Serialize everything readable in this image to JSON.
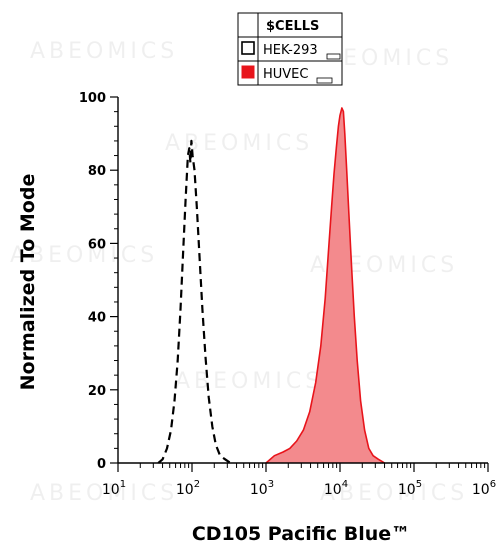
{
  "watermark": "ABEOMICS",
  "legend": {
    "header": "$CELLS",
    "entries": [
      {
        "label": "HEK-293",
        "swatch": "#ffffff",
        "swatch_border": "#000000"
      },
      {
        "label": "HUVEC",
        "swatch": "#e8141b",
        "swatch_border": "#e8141b"
      }
    ]
  },
  "chart_data": {
    "type": "area",
    "xlabel": "CD105 Pacific Blue™",
    "ylabel": "Normalized To Mode",
    "x_scale": "log",
    "xlim": [
      10,
      1000000
    ],
    "ylim": [
      0,
      100
    ],
    "x_ticks": [
      {
        "base": "10",
        "exp": "1",
        "value": 10
      },
      {
        "base": "10",
        "exp": "2",
        "value": 100
      },
      {
        "base": "10",
        "exp": "3",
        "value": 1000
      },
      {
        "base": "10",
        "exp": "4",
        "value": 10000
      },
      {
        "base": "10",
        "exp": "5",
        "value": 100000
      },
      {
        "base": "10",
        "exp": "6",
        "value": 1000000
      }
    ],
    "y_ticks": [
      "0",
      "20",
      "40",
      "60",
      "80",
      "100"
    ],
    "series": [
      {
        "name": "HEK-293",
        "color": "#000000",
        "fill": "none",
        "style": "dashed",
        "points": [
          [
            35,
            0
          ],
          [
            40,
            1
          ],
          [
            46,
            4
          ],
          [
            52,
            9
          ],
          [
            58,
            17
          ],
          [
            64,
            28
          ],
          [
            70,
            42
          ],
          [
            76,
            58
          ],
          [
            82,
            72
          ],
          [
            88,
            84
          ],
          [
            92,
            86
          ],
          [
            95,
            82
          ],
          [
            98,
            88
          ],
          [
            102,
            84
          ],
          [
            108,
            80
          ],
          [
            116,
            70
          ],
          [
            126,
            57
          ],
          [
            138,
            42
          ],
          [
            152,
            29
          ],
          [
            168,
            18
          ],
          [
            188,
            10
          ],
          [
            210,
            5
          ],
          [
            240,
            2
          ],
          [
            280,
            1
          ],
          [
            330,
            0
          ]
        ]
      },
      {
        "name": "HUVEC",
        "color": "#e8141b",
        "fill": "#f38a8d",
        "style": "solid",
        "points": [
          [
            1000,
            0
          ],
          [
            1300,
            2
          ],
          [
            1700,
            3
          ],
          [
            2100,
            4
          ],
          [
            2600,
            6
          ],
          [
            3200,
            9
          ],
          [
            3900,
            14
          ],
          [
            4700,
            22
          ],
          [
            5500,
            32
          ],
          [
            6300,
            45
          ],
          [
            7000,
            58
          ],
          [
            7700,
            70
          ],
          [
            8300,
            79
          ],
          [
            8900,
            86
          ],
          [
            9500,
            92
          ],
          [
            10000,
            95
          ],
          [
            10600,
            97
          ],
          [
            11100,
            96
          ],
          [
            11600,
            90
          ],
          [
            12300,
            80
          ],
          [
            13200,
            68
          ],
          [
            14300,
            54
          ],
          [
            15600,
            40
          ],
          [
            17100,
            28
          ],
          [
            19000,
            17
          ],
          [
            21500,
            9
          ],
          [
            24500,
            4
          ],
          [
            28000,
            2
          ],
          [
            33000,
            1
          ],
          [
            40000,
            0
          ]
        ]
      }
    ],
    "grid": false
  }
}
